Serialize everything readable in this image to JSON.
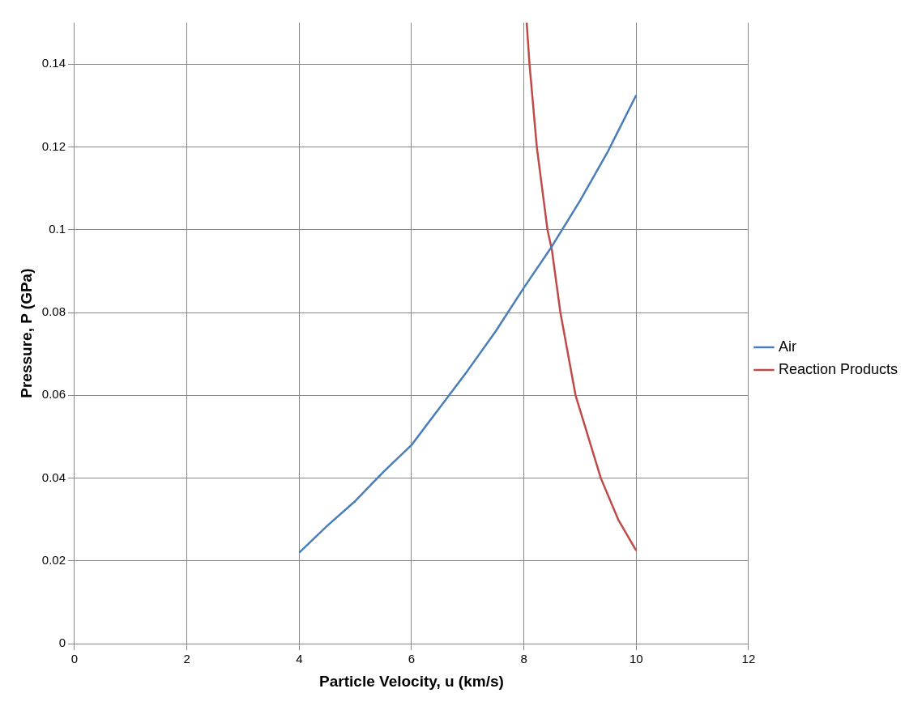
{
  "chart_data": {
    "type": "line",
    "xlabel": "Particle Velocity, u (km/s)",
    "ylabel": "Pressure, P (GPa)",
    "xlim": [
      0,
      12
    ],
    "xticks": [
      0,
      2,
      4,
      6,
      8,
      10,
      12
    ],
    "ylim": [
      0,
      0.15
    ],
    "yticks": [
      0,
      0.02,
      0.04,
      0.06,
      0.08,
      0.1,
      0.12,
      0.14
    ],
    "grid": true,
    "legend": "right",
    "marker": "none",
    "line_style": "solid",
    "series": [
      {
        "name": "Air",
        "color": "#4a7ebb",
        "x": [
          4,
          4.5,
          5,
          5.5,
          6,
          6.5,
          7,
          7.5,
          8,
          8.5,
          9,
          9.5,
          10
        ],
        "values": [
          0.022,
          0.0285,
          0.0345,
          0.0415,
          0.048,
          0.057,
          0.066,
          0.0755,
          0.086,
          0.096,
          0.107,
          0.119,
          0.1325
        ]
      },
      {
        "name": "Reaction Products",
        "color": "#be4b48",
        "x": [
          8.05,
          8.1,
          8.23,
          8.42,
          8.5,
          8.65,
          8.92,
          9.37,
          9.68,
          10
        ],
        "values": [
          0.15,
          0.14,
          0.12,
          0.1,
          0.095,
          0.08,
          0.06,
          0.04,
          0.03,
          0.0225
        ]
      }
    ]
  }
}
